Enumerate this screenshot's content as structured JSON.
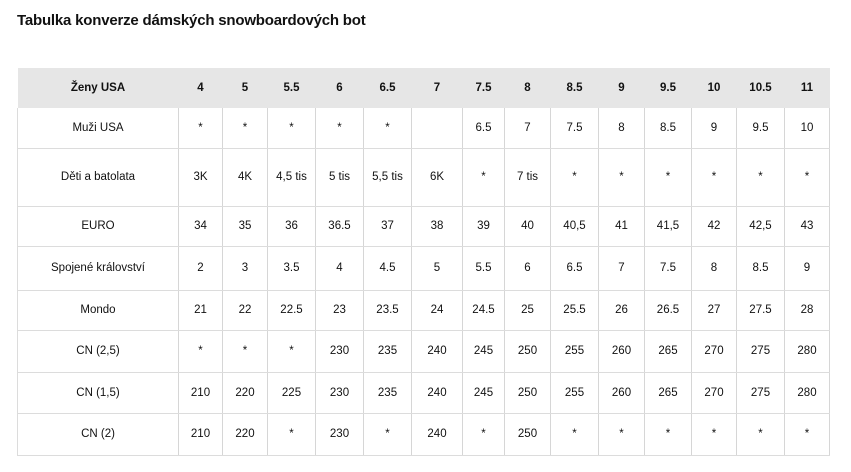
{
  "title": "Tabulka konverze dámských snowboardových bot",
  "table": {
    "header": [
      "Ženy USA",
      "4",
      "5",
      "5.5",
      "6",
      "6.5",
      "7",
      "7.5",
      "8",
      "8.5",
      "9",
      "9.5",
      "10",
      "10.5",
      "11"
    ],
    "rows": [
      [
        "Muži USA",
        "*",
        "*",
        "*",
        "*",
        "*",
        "",
        "6.5",
        "7",
        "7.5",
        "8",
        "8.5",
        "9",
        "9.5",
        "10"
      ],
      [
        "Děti a batolata",
        "3K",
        "4K",
        "4,5 tis",
        "5 tis",
        "5,5 tis",
        "6K",
        "*",
        "7 tis",
        "*",
        "*",
        "*",
        "*",
        "*",
        "*"
      ],
      [
        "EURO",
        "34",
        "35",
        "36",
        "36.5",
        "37",
        "38",
        "39",
        "40",
        "40,5",
        "41",
        "41,5",
        "42",
        "42,5",
        "43"
      ],
      [
        "Spojené království",
        "2",
        "3",
        "3.5",
        "4",
        "4.5",
        "5",
        "5.5",
        "6",
        "6.5",
        "7",
        "7.5",
        "8",
        "8.5",
        "9"
      ],
      [
        "Mondo",
        "21",
        "22",
        "22.5",
        "23",
        "23.5",
        "24",
        "24.5",
        "25",
        "25.5",
        "26",
        "26.5",
        "27",
        "27.5",
        "28"
      ],
      [
        "CN (2,5)",
        "*",
        "*",
        "*",
        "230",
        "235",
        "240",
        "245",
        "250",
        "255",
        "260",
        "265",
        "270",
        "275",
        "280"
      ],
      [
        "CN (1,5)",
        "210",
        "220",
        "225",
        "230",
        "235",
        "240",
        "245",
        "250",
        "255",
        "260",
        "265",
        "270",
        "275",
        "280"
      ],
      [
        "CN (2)",
        "210",
        "220",
        "*",
        "230",
        "*",
        "240",
        "*",
        "250",
        "*",
        "*",
        "*",
        "*",
        "*",
        "*"
      ]
    ]
  }
}
